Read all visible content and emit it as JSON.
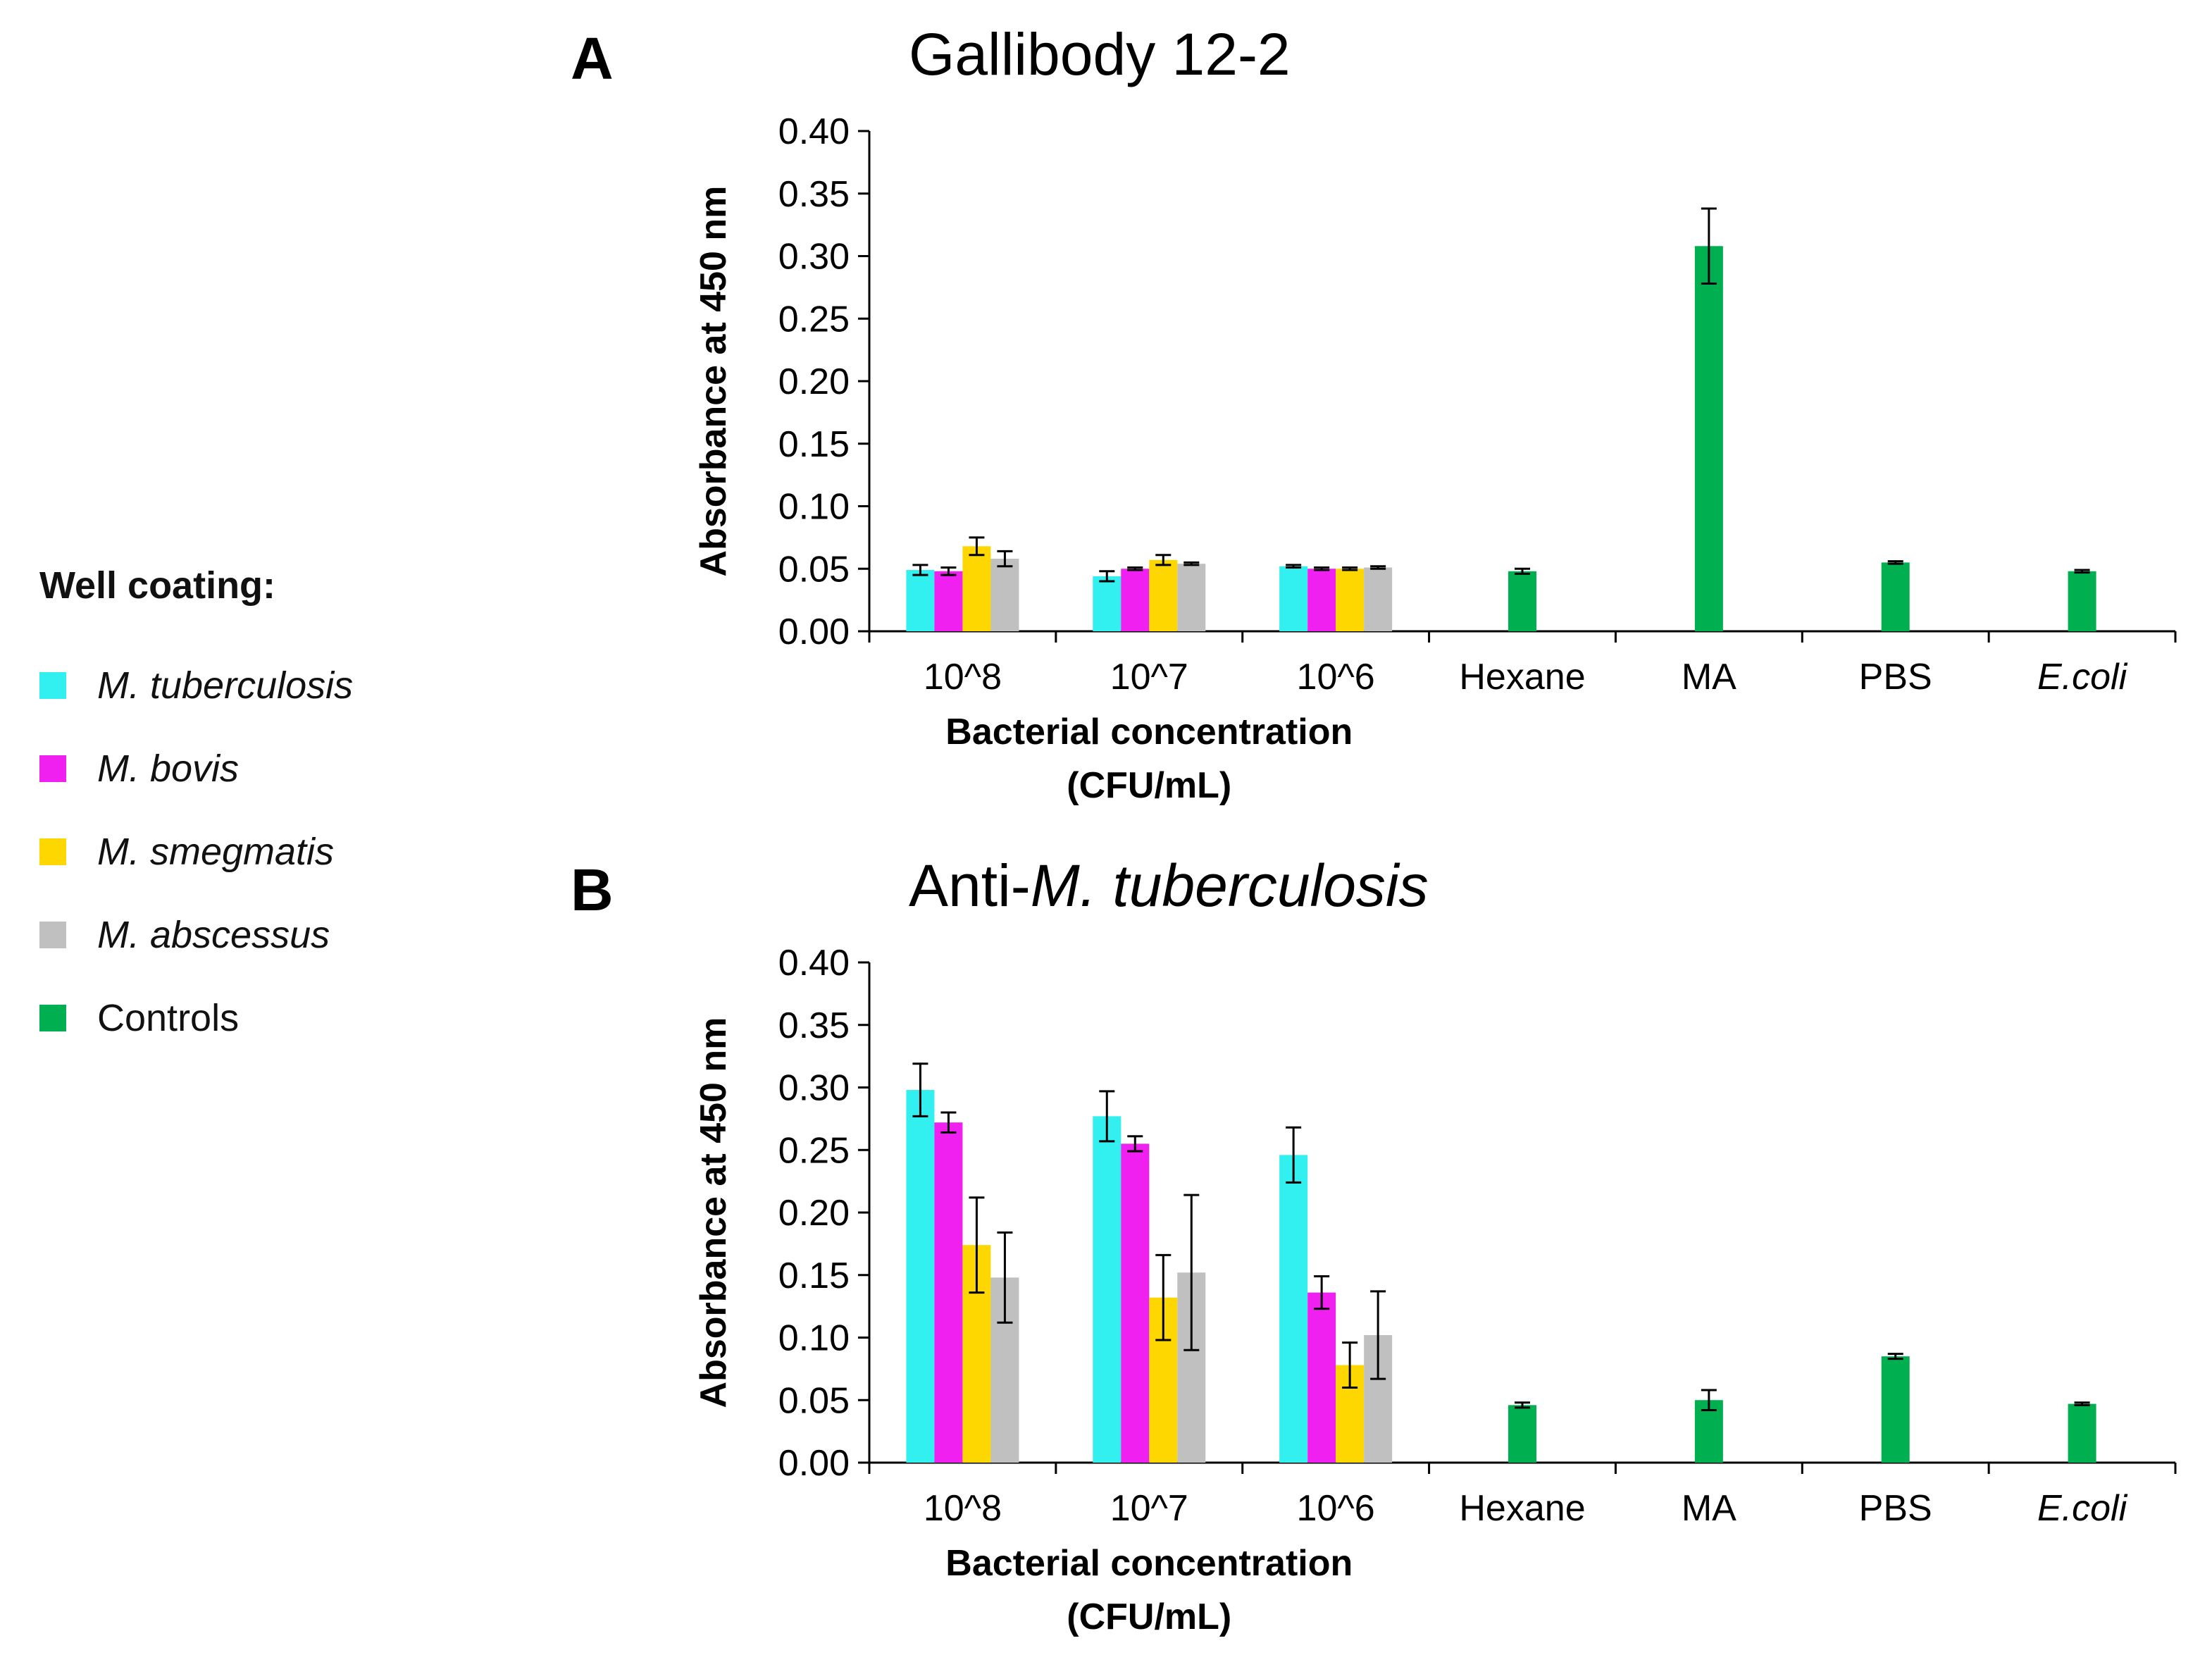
{
  "figure": {
    "legend_title": "Well coating:",
    "legend": [
      {
        "label": "M. tuberculosis",
        "color": "#33F0F0",
        "italic": true
      },
      {
        "label": "M. bovis",
        "color": "#F020F0",
        "italic": true
      },
      {
        "label": "M. smegmatis",
        "color": "#FFD700",
        "italic": true
      },
      {
        "label": "M. abscessus",
        "color": "#C0C0C0",
        "italic": true
      },
      {
        "label": "Controls",
        "color": "#00B050",
        "italic": false
      }
    ]
  },
  "chart_data": [
    {
      "type": "bar",
      "panel_label": "A",
      "title": "Gallibody 12-2",
      "title_parts": [
        {
          "text": "Gallibody 12-2",
          "italic": false
        }
      ],
      "ylabel": "Absorbance at 450 nm",
      "xlabel": "Bacterial concentration",
      "xlabel_line2": "(CFU/mL)",
      "ylim": [
        0,
        0.4
      ],
      "yticks": [
        "0.00",
        "0.05",
        "0.10",
        "0.15",
        "0.20",
        "0.25",
        "0.30",
        "0.35",
        "0.40"
      ],
      "groups": [
        {
          "label": "10^8",
          "italic": false,
          "bars": [
            {
              "series": "M. tuberculosis",
              "value": 0.049,
              "error": 0.004
            },
            {
              "series": "M. bovis",
              "value": 0.048,
              "error": 0.003
            },
            {
              "series": "M. smegmatis",
              "value": 0.068,
              "error": 0.007
            },
            {
              "series": "M. abscessus",
              "value": 0.058,
              "error": 0.006
            }
          ]
        },
        {
          "label": "10^7",
          "italic": false,
          "bars": [
            {
              "series": "M. tuberculosis",
              "value": 0.044,
              "error": 0.004
            },
            {
              "series": "M. bovis",
              "value": 0.05,
              "error": 0.001
            },
            {
              "series": "M. smegmatis",
              "value": 0.057,
              "error": 0.004
            },
            {
              "series": "M. abscessus",
              "value": 0.054,
              "error": 0.001
            }
          ]
        },
        {
          "label": "10^6",
          "italic": false,
          "bars": [
            {
              "series": "M. tuberculosis",
              "value": 0.052,
              "error": 0.001
            },
            {
              "series": "M. bovis",
              "value": 0.05,
              "error": 0.001
            },
            {
              "series": "M. smegmatis",
              "value": 0.05,
              "error": 0.001
            },
            {
              "series": "M. abscessus",
              "value": 0.051,
              "error": 0.001
            }
          ]
        },
        {
          "label": "Hexane",
          "italic": false,
          "bars": [
            {
              "series": "Controls",
              "value": 0.048,
              "error": 0.002
            }
          ]
        },
        {
          "label": "MA",
          "italic": false,
          "bars": [
            {
              "series": "Controls",
              "value": 0.308,
              "error": 0.03
            }
          ]
        },
        {
          "label": "PBS",
          "italic": false,
          "bars": [
            {
              "series": "Controls",
              "value": 0.055,
              "error": 0.001
            }
          ]
        },
        {
          "label": "E.coli",
          "italic": true,
          "bars": [
            {
              "series": "Controls",
              "value": 0.048,
              "error": 0.001
            }
          ]
        }
      ]
    },
    {
      "type": "bar",
      "panel_label": "B",
      "title": "Anti-M. tuberculosis",
      "title_parts": [
        {
          "text": "Anti-",
          "italic": false
        },
        {
          "text": "M. tuberculosis",
          "italic": true
        }
      ],
      "ylabel": "Absorbance at 450 nm",
      "xlabel": "Bacterial concentration",
      "xlabel_line2": "(CFU/mL)",
      "ylim": [
        0,
        0.4
      ],
      "yticks": [
        "0.00",
        "0.05",
        "0.10",
        "0.15",
        "0.20",
        "0.25",
        "0.30",
        "0.35",
        "0.40"
      ],
      "groups": [
        {
          "label": "10^8",
          "italic": false,
          "bars": [
            {
              "series": "M. tuberculosis",
              "value": 0.298,
              "error": 0.021
            },
            {
              "series": "M. bovis",
              "value": 0.272,
              "error": 0.008
            },
            {
              "series": "M. smegmatis",
              "value": 0.174,
              "error": 0.038
            },
            {
              "series": "M. abscessus",
              "value": 0.148,
              "error": 0.036
            }
          ]
        },
        {
          "label": "10^7",
          "italic": false,
          "bars": [
            {
              "series": "M. tuberculosis",
              "value": 0.277,
              "error": 0.02
            },
            {
              "series": "M. bovis",
              "value": 0.255,
              "error": 0.006
            },
            {
              "series": "M. smegmatis",
              "value": 0.132,
              "error": 0.034
            },
            {
              "series": "M. abscessus",
              "value": 0.152,
              "error": 0.062
            }
          ]
        },
        {
          "label": "10^6",
          "italic": false,
          "bars": [
            {
              "series": "M. tuberculosis",
              "value": 0.246,
              "error": 0.022
            },
            {
              "series": "M. bovis",
              "value": 0.136,
              "error": 0.013
            },
            {
              "series": "M. smegmatis",
              "value": 0.078,
              "error": 0.018
            },
            {
              "series": "M. abscessus",
              "value": 0.102,
              "error": 0.035
            }
          ]
        },
        {
          "label": "Hexane",
          "italic": false,
          "bars": [
            {
              "series": "Controls",
              "value": 0.046,
              "error": 0.002
            }
          ]
        },
        {
          "label": "MA",
          "italic": false,
          "bars": [
            {
              "series": "Controls",
              "value": 0.05,
              "error": 0.008
            }
          ]
        },
        {
          "label": "PBS",
          "italic": false,
          "bars": [
            {
              "series": "Controls",
              "value": 0.085,
              "error": 0.002
            }
          ]
        },
        {
          "label": "E.coli",
          "italic": true,
          "bars": [
            {
              "series": "Controls",
              "value": 0.047,
              "error": 0.001
            }
          ]
        }
      ]
    }
  ]
}
